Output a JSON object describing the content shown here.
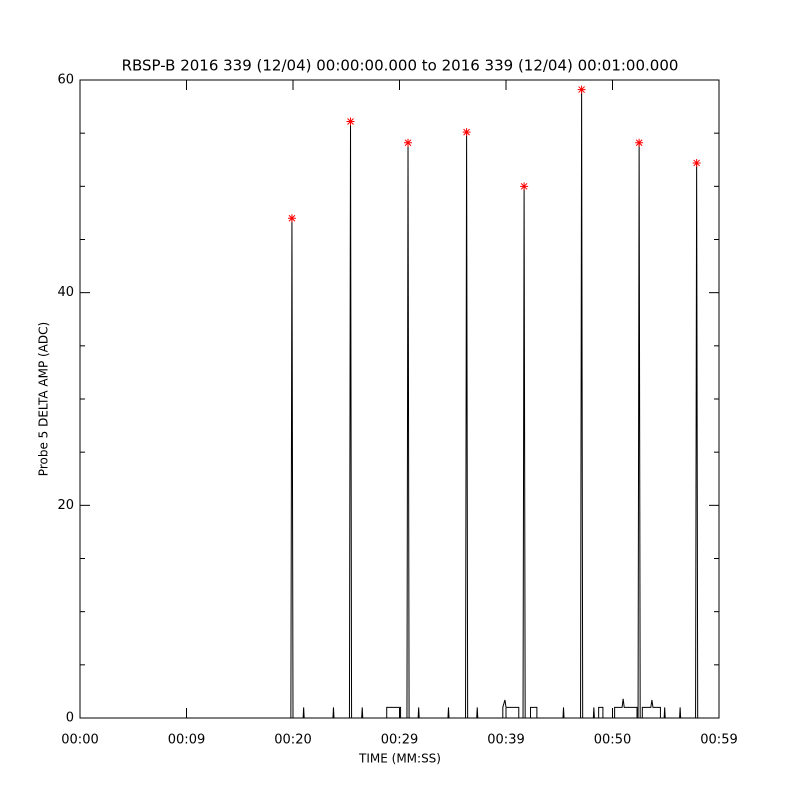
{
  "chart_data": {
    "type": "line",
    "title": "RBSP-B 2016 339 (12/04) 00:00:00.000 to 2016 339 (12/04) 00:01:00.000",
    "xlabel": "TIME (MM:SS)",
    "ylabel": "Probe 5 DELTA AMP (ADC)",
    "xlim": [
      0,
      60
    ],
    "ylim": [
      0,
      60
    ],
    "xticks": [
      {
        "value": 0,
        "label": "00:00"
      },
      {
        "value": 10,
        "label": "00:09"
      },
      {
        "value": 20,
        "label": "00:20"
      },
      {
        "value": 30,
        "label": "00:29"
      },
      {
        "value": 40,
        "label": "00:39"
      },
      {
        "value": 50,
        "label": "00:50"
      },
      {
        "value": 60,
        "label": "00:59"
      }
    ],
    "yticks": [
      0,
      20,
      40,
      60
    ],
    "yminorticks": [
      5,
      10,
      15,
      25,
      30,
      35,
      45,
      50,
      55
    ],
    "series": [
      {
        "type": "line",
        "color": "#000000",
        "x": [
          0,
          19.8,
          19.9,
          20.0,
          20.95,
          21.0,
          21.05,
          23.75,
          23.8,
          23.85,
          25.3,
          25.4,
          25.5,
          26.45,
          26.5,
          26.55,
          28.8,
          28.8,
          30.1,
          30.1,
          30.7,
          30.8,
          30.9,
          31.75,
          31.8,
          31.85,
          34.55,
          34.6,
          34.65,
          36.2,
          36.3,
          36.4,
          37.25,
          37.3,
          37.35,
          39.7,
          39.7,
          39.9,
          40.0,
          41.2,
          41.2,
          41.6,
          41.7,
          41.8,
          42.3,
          42.3,
          42.9,
          42.9,
          45.35,
          45.4,
          45.45,
          47.0,
          47.1,
          47.2,
          48.2,
          48.25,
          48.3,
          48.7,
          48.7,
          49.1,
          49.1,
          50.2,
          50.2,
          50.9,
          51.0,
          51.1,
          52.3,
          52.3,
          52.4,
          52.5,
          52.6,
          52.8,
          52.8,
          53.6,
          53.7,
          53.8,
          54.5,
          54.5,
          54.85,
          54.9,
          54.95,
          56.3,
          56.35,
          56.4,
          57.8,
          57.9,
          58.0,
          60
        ],
        "values": [
          0,
          0,
          47,
          0,
          0,
          1,
          0,
          0,
          1,
          0,
          0,
          56.1,
          0,
          0,
          1,
          0,
          0,
          1,
          1,
          0,
          0,
          54.1,
          0,
          0,
          1,
          0,
          0,
          1,
          0,
          0,
          55.1,
          0,
          0,
          1,
          0,
          0,
          1,
          1.7,
          1,
          1,
          0,
          0,
          50,
          0,
          0,
          1,
          1,
          0,
          0,
          1,
          0,
          0,
          59.1,
          0,
          0,
          1,
          0,
          0,
          1,
          1,
          0,
          0,
          1,
          1,
          1.8,
          1,
          1,
          0,
          0,
          54.1,
          0,
          0,
          1,
          1,
          1.7,
          1,
          1,
          0,
          0,
          1,
          0,
          0,
          1,
          0,
          0,
          52.2,
          0,
          0
        ]
      },
      {
        "type": "scatter",
        "color": "#ff0000",
        "x": [
          19.9,
          25.4,
          30.8,
          36.3,
          41.7,
          47.1,
          52.5,
          57.9
        ],
        "values": [
          47,
          56.1,
          54.1,
          55.1,
          50,
          59.1,
          54.1,
          52.2
        ]
      }
    ]
  }
}
